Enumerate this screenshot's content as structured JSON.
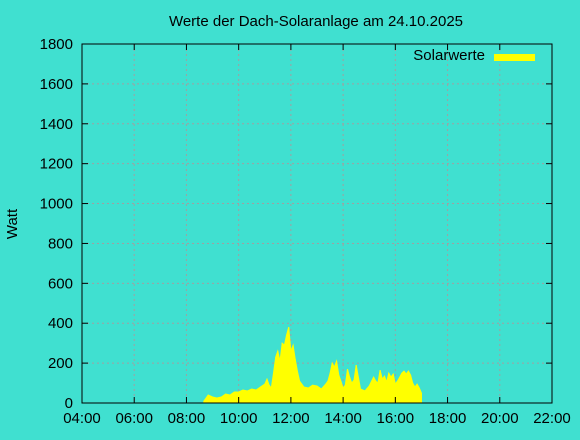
{
  "chart_data": {
    "type": "area",
    "title": "Werte der Dach-Solaranlage am 24.10.2025",
    "xlabel": "",
    "ylabel": "Watt",
    "xlim": [
      "04:00",
      "22:00"
    ],
    "ylim": [
      0,
      1800
    ],
    "x_ticks": [
      "04:00",
      "06:00",
      "08:00",
      "10:00",
      "12:00",
      "14:00",
      "16:00",
      "18:00",
      "20:00",
      "22:00"
    ],
    "y_ticks": [
      "0",
      "200",
      "400",
      "600",
      "800",
      "1000",
      "1200",
      "1400",
      "1600",
      "1800"
    ],
    "grid": true,
    "legend_position": "top-right",
    "colors": {
      "background": "#40e0d0",
      "series": "#ffff00",
      "grid": "#a0a0a0",
      "axis": "#000000"
    },
    "series": [
      {
        "name": "Solarwerte",
        "x": [
          "08:40",
          "08:50",
          "09:00",
          "09:10",
          "09:20",
          "09:30",
          "09:40",
          "09:50",
          "10:00",
          "10:10",
          "10:20",
          "10:30",
          "10:40",
          "10:50",
          "11:00",
          "11:05",
          "11:10",
          "11:15",
          "11:20",
          "11:25",
          "11:30",
          "11:35",
          "11:40",
          "11:45",
          "11:50",
          "11:55",
          "12:00",
          "12:05",
          "12:10",
          "12:15",
          "12:20",
          "12:25",
          "12:30",
          "12:40",
          "12:50",
          "13:00",
          "13:10",
          "13:20",
          "13:25",
          "13:30",
          "13:35",
          "13:40",
          "13:45",
          "13:50",
          "13:55",
          "14:00",
          "14:05",
          "14:10",
          "14:15",
          "14:20",
          "14:25",
          "14:30",
          "14:40",
          "14:50",
          "15:00",
          "15:10",
          "15:15",
          "15:20",
          "15:25",
          "15:30",
          "15:35",
          "15:40",
          "15:45",
          "15:50",
          "15:55",
          "16:00",
          "16:05",
          "16:10",
          "16:15",
          "16:20",
          "16:25",
          "16:30",
          "16:35",
          "16:40",
          "16:45",
          "16:50",
          "16:55",
          "17:00"
        ],
        "values": [
          10,
          40,
          30,
          25,
          30,
          45,
          40,
          55,
          55,
          65,
          60,
          70,
          65,
          80,
          95,
          120,
          90,
          75,
          150,
          230,
          260,
          210,
          300,
          290,
          340,
          380,
          260,
          290,
          220,
          160,
          110,
          95,
          80,
          75,
          90,
          85,
          70,
          95,
          110,
          150,
          200,
          180,
          210,
          140,
          110,
          75,
          90,
          170,
          130,
          100,
          115,
          190,
          70,
          60,
          85,
          130,
          110,
          100,
          165,
          120,
          135,
          105,
          150,
          130,
          145,
          95,
          110,
          130,
          150,
          160,
          145,
          160,
          140,
          100,
          80,
          95,
          75,
          50
        ]
      }
    ]
  }
}
